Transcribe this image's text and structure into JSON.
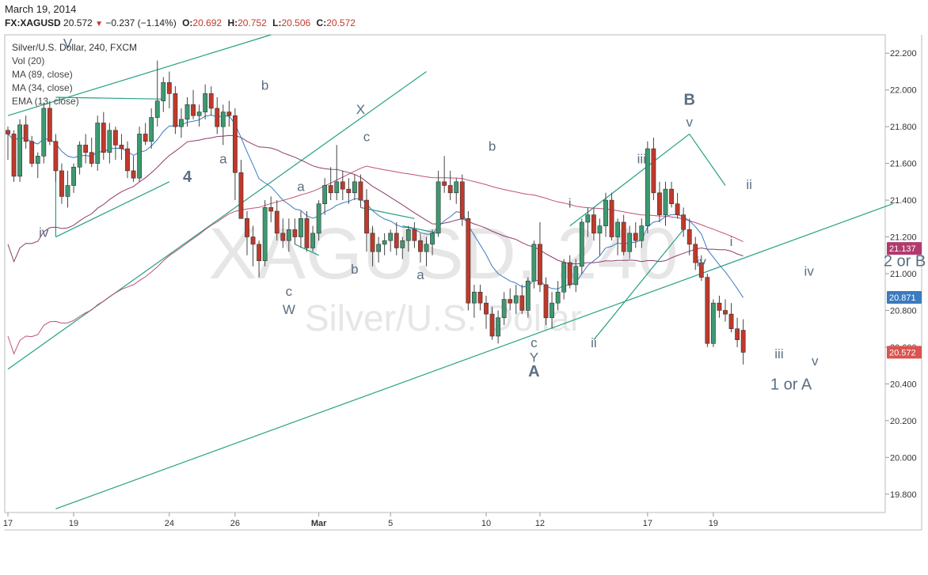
{
  "header": {
    "date": "March 19, 2014",
    "symbol": "FX:XAGUSD",
    "last": "20.572",
    "change": "−0.237 (−1.14%)",
    "open_label": "O:",
    "open": "20.692",
    "high_label": "H:",
    "high": "20.752",
    "low_label": "L:",
    "low": "20.506",
    "close_label": "C:",
    "close": "20.572"
  },
  "legend": {
    "title": "Silver/U.S. Dollar, 240, FXCM",
    "items": [
      "Vol (20)",
      "MA (89, close)",
      "MA (34, close)",
      "EMA (13, close)"
    ]
  },
  "watermark": {
    "symbol": "XAGUSD, 240",
    "name": "Silver/U.S. Dollar"
  },
  "colors": {
    "up": "#3d9970",
    "down": "#c0392b",
    "ma89": "#c0507a",
    "ma34": "#8e3c6e",
    "ema13": "#3b7bbf",
    "trend": "#26a085",
    "price_badge": "#d9534f",
    "ema_badge": "#3b7bbf",
    "ma_badge": "#b03a6e"
  },
  "chart_data": {
    "type": "candlestick",
    "title": "Silver/U.S. Dollar, 240, FXCM",
    "ylim": [
      19.7,
      22.3
    ],
    "y_ticks": [
      "22.200",
      "22.000",
      "21.800",
      "21.600",
      "21.400",
      "21.200",
      "21.000",
      "20.800",
      "20.600",
      "20.400",
      "20.200",
      "20.000",
      "19.800"
    ],
    "x_ticks": [
      "17",
      "19",
      "24",
      "26",
      "Mar",
      "5",
      "10",
      "12",
      "17",
      "19"
    ],
    "price_badges": [
      {
        "label": "21.137",
        "value": 21.137,
        "kind": "ma"
      },
      {
        "label": "20.871",
        "value": 20.871,
        "kind": "ema"
      },
      {
        "label": "20.572",
        "value": 20.572,
        "kind": "price"
      }
    ],
    "candles": [
      [
        21.78,
        21.8,
        21.62,
        21.76
      ],
      [
        21.76,
        21.78,
        21.5,
        21.53
      ],
      [
        21.53,
        21.84,
        21.5,
        21.81
      ],
      [
        21.81,
        21.86,
        21.68,
        21.72
      ],
      [
        21.72,
        21.75,
        21.58,
        21.6
      ],
      [
        21.6,
        21.66,
        21.52,
        21.64
      ],
      [
        21.64,
        21.93,
        21.6,
        21.9
      ],
      [
        21.9,
        21.94,
        21.7,
        21.72
      ],
      [
        21.72,
        21.76,
        21.5,
        21.56
      ],
      [
        21.56,
        21.6,
        21.38,
        21.42
      ],
      [
        21.42,
        21.56,
        21.36,
        21.48
      ],
      [
        21.48,
        21.6,
        21.44,
        21.58
      ],
      [
        21.58,
        21.72,
        21.54,
        21.7
      ],
      [
        21.7,
        21.76,
        21.6,
        21.66
      ],
      [
        21.66,
        21.74,
        21.58,
        21.6
      ],
      [
        21.6,
        21.86,
        21.56,
        21.82
      ],
      [
        21.82,
        21.88,
        21.62,
        21.66
      ],
      [
        21.66,
        21.82,
        21.6,
        21.78
      ],
      [
        21.78,
        21.8,
        21.62,
        21.7
      ],
      [
        21.7,
        21.76,
        21.62,
        21.68
      ],
      [
        21.68,
        21.72,
        21.52,
        21.56
      ],
      [
        21.56,
        21.64,
        21.5,
        21.52
      ],
      [
        21.52,
        21.8,
        21.5,
        21.76
      ],
      [
        21.76,
        21.82,
        21.7,
        21.72
      ],
      [
        21.72,
        21.9,
        21.68,
        21.85
      ],
      [
        21.85,
        22.16,
        21.8,
        21.94
      ],
      [
        21.94,
        22.07,
        21.88,
        22.04
      ],
      [
        22.04,
        22.1,
        21.9,
        21.98
      ],
      [
        21.98,
        22.02,
        21.76,
        21.8
      ],
      [
        21.8,
        21.9,
        21.74,
        21.84
      ],
      [
        21.84,
        21.96,
        21.8,
        21.92
      ],
      [
        21.92,
        22.0,
        21.84,
        21.86
      ],
      [
        21.86,
        21.92,
        21.8,
        21.88
      ],
      [
        21.88,
        22.03,
        21.84,
        21.98
      ],
      [
        21.98,
        22.02,
        21.86,
        21.9
      ],
      [
        21.9,
        21.96,
        21.76,
        21.8
      ],
      [
        21.8,
        21.92,
        21.7,
        21.88
      ],
      [
        21.88,
        21.94,
        21.8,
        21.86
      ],
      [
        21.86,
        21.9,
        21.4,
        21.55
      ],
      [
        21.55,
        21.62,
        21.3,
        21.3
      ],
      [
        21.3,
        21.34,
        21.1,
        21.2
      ],
      [
        21.2,
        21.26,
        21.04,
        21.16
      ],
      [
        21.16,
        21.18,
        20.98,
        21.07
      ],
      [
        21.07,
        21.4,
        21.04,
        21.36
      ],
      [
        21.36,
        21.42,
        21.28,
        21.34
      ],
      [
        21.34,
        21.4,
        21.18,
        21.22
      ],
      [
        21.22,
        21.3,
        21.14,
        21.18
      ],
      [
        21.18,
        21.3,
        21.12,
        21.24
      ],
      [
        21.24,
        21.3,
        21.16,
        21.2
      ],
      [
        21.2,
        21.34,
        21.14,
        21.3
      ],
      [
        21.3,
        21.34,
        21.12,
        21.14
      ],
      [
        21.14,
        21.26,
        21.12,
        21.22
      ],
      [
        21.22,
        21.4,
        21.18,
        21.38
      ],
      [
        21.38,
        21.52,
        21.32,
        21.48
      ],
      [
        21.48,
        21.58,
        21.4,
        21.44
      ],
      [
        21.44,
        21.7,
        21.4,
        21.5
      ],
      [
        21.5,
        21.56,
        21.4,
        21.46
      ],
      [
        21.46,
        21.52,
        21.38,
        21.44
      ],
      [
        21.44,
        21.54,
        21.4,
        21.5
      ],
      [
        21.5,
        21.54,
        21.36,
        21.4
      ],
      [
        21.4,
        21.46,
        21.12,
        21.22
      ],
      [
        21.22,
        21.26,
        21.04,
        21.12
      ],
      [
        21.12,
        21.2,
        21.06,
        21.16
      ],
      [
        21.16,
        21.22,
        21.1,
        21.18
      ],
      [
        21.18,
        21.24,
        21.12,
        21.22
      ],
      [
        21.22,
        21.28,
        21.1,
        21.14
      ],
      [
        21.14,
        21.2,
        21.08,
        21.18
      ],
      [
        21.18,
        21.26,
        21.12,
        21.24
      ],
      [
        21.24,
        21.28,
        21.14,
        21.18
      ],
      [
        21.18,
        21.22,
        21.06,
        21.12
      ],
      [
        21.12,
        21.2,
        21.04,
        21.16
      ],
      [
        21.16,
        21.24,
        21.1,
        21.22
      ],
      [
        21.22,
        21.56,
        21.2,
        21.5
      ],
      [
        21.5,
        21.64,
        21.44,
        21.48
      ],
      [
        21.48,
        21.56,
        21.4,
        21.44
      ],
      [
        21.44,
        21.52,
        21.38,
        21.5
      ],
      [
        21.5,
        21.54,
        21.26,
        21.3
      ],
      [
        21.3,
        21.34,
        20.8,
        20.84
      ],
      [
        20.84,
        20.94,
        20.76,
        20.9
      ],
      [
        20.9,
        20.94,
        20.8,
        20.84
      ],
      [
        20.84,
        20.88,
        20.7,
        20.78
      ],
      [
        20.78,
        20.82,
        20.64,
        20.66
      ],
      [
        20.66,
        20.8,
        20.62,
        20.76
      ],
      [
        20.76,
        20.9,
        20.72,
        20.86
      ],
      [
        20.86,
        20.92,
        20.8,
        20.84
      ],
      [
        20.84,
        20.94,
        20.78,
        20.88
      ],
      [
        20.88,
        20.94,
        20.78,
        20.8
      ],
      [
        20.8,
        20.98,
        20.76,
        20.96
      ],
      [
        20.96,
        21.18,
        20.92,
        21.16
      ],
      [
        21.16,
        21.28,
        20.9,
        20.94
      ],
      [
        20.94,
        20.98,
        20.72,
        20.76
      ],
      [
        20.76,
        20.9,
        20.7,
        20.84
      ],
      [
        20.84,
        20.96,
        20.8,
        20.9
      ],
      [
        20.9,
        21.08,
        20.86,
        21.06
      ],
      [
        21.06,
        21.1,
        20.92,
        20.94
      ],
      [
        20.94,
        21.08,
        20.9,
        21.04
      ],
      [
        21.04,
        21.3,
        21.0,
        21.28
      ],
      [
        21.28,
        21.36,
        21.2,
        21.32
      ],
      [
        21.32,
        21.36,
        21.18,
        21.22
      ],
      [
        21.22,
        21.3,
        21.1,
        21.26
      ],
      [
        21.26,
        21.44,
        21.2,
        21.4
      ],
      [
        21.4,
        21.44,
        21.18,
        21.2
      ],
      [
        21.2,
        21.3,
        21.1,
        21.28
      ],
      [
        21.28,
        21.32,
        21.1,
        21.12
      ],
      [
        21.12,
        21.26,
        21.08,
        21.22
      ],
      [
        21.22,
        21.28,
        21.14,
        21.18
      ],
      [
        21.18,
        21.3,
        21.14,
        21.26
      ],
      [
        21.26,
        21.72,
        21.22,
        21.68
      ],
      [
        21.68,
        21.74,
        21.4,
        21.44
      ],
      [
        21.44,
        21.5,
        21.28,
        21.32
      ],
      [
        21.32,
        21.5,
        21.26,
        21.46
      ],
      [
        21.46,
        21.5,
        21.36,
        21.38
      ],
      [
        21.38,
        21.44,
        21.3,
        21.32
      ],
      [
        21.32,
        21.36,
        21.2,
        21.24
      ],
      [
        21.24,
        21.3,
        21.1,
        21.16
      ],
      [
        21.16,
        21.2,
        21.02,
        21.06
      ],
      [
        21.06,
        21.1,
        20.96,
        20.98
      ],
      [
        20.98,
        21.0,
        20.6,
        20.62
      ],
      [
        20.62,
        20.86,
        20.6,
        20.84
      ],
      [
        20.84,
        20.88,
        20.76,
        20.8
      ],
      [
        20.8,
        20.86,
        20.74,
        20.78
      ],
      [
        20.78,
        20.84,
        20.68,
        20.7
      ],
      [
        20.7,
        20.76,
        20.6,
        20.64
      ],
      [
        20.692,
        20.752,
        20.506,
        20.572
      ]
    ],
    "waves": [
      {
        "label": "iv",
        "x": 6,
        "y": 21.2
      },
      {
        "label": "V",
        "x": 10,
        "y": 22.23
      },
      {
        "label": "b",
        "x": 43,
        "y": 22.0
      },
      {
        "label": "a",
        "x": 36,
        "y": 21.6
      },
      {
        "label": "4",
        "x": 30,
        "y": 21.5
      },
      {
        "label": "X",
        "x": 59,
        "y": 21.87
      },
      {
        "label": "c",
        "x": 60,
        "y": 21.72
      },
      {
        "label": "a",
        "x": 49,
        "y": 21.45
      },
      {
        "label": "b",
        "x": 58,
        "y": 21.0
      },
      {
        "label": "c",
        "x": 47,
        "y": 20.88
      },
      {
        "label": "W",
        "x": 47,
        "y": 20.78
      },
      {
        "label": "a",
        "x": 69,
        "y": 20.97
      },
      {
        "label": "b",
        "x": 81,
        "y": 21.67
      },
      {
        "label": "c",
        "x": 88,
        "y": 20.6
      },
      {
        "label": "Y",
        "x": 88,
        "y": 20.52
      },
      {
        "label": "A",
        "x": 88,
        "y": 20.44
      },
      {
        "label": "i",
        "x": 94,
        "y": 21.36
      },
      {
        "label": "ii",
        "x": 98,
        "y": 20.6
      },
      {
        "label": "iii",
        "x": 106,
        "y": 21.6
      },
      {
        "label": "B",
        "x": 114,
        "y": 21.92
      },
      {
        "label": "v",
        "x": 114,
        "y": 21.8
      },
      {
        "label": "iv",
        "x": 116,
        "y": 21.04
      },
      {
        "label": "i",
        "x": 121,
        "y": 21.15
      },
      {
        "label": "ii",
        "x": 124,
        "y": 21.46
      },
      {
        "label": "iv",
        "x": 134,
        "y": 20.99
      },
      {
        "label": "iii",
        "x": 129,
        "y": 20.54
      },
      {
        "label": "v",
        "x": 135,
        "y": 20.5
      },
      {
        "label": "1 or A",
        "x": 131,
        "y": 20.37
      },
      {
        "label": "2 or B",
        "x": 150,
        "y": 21.04
      }
    ]
  }
}
